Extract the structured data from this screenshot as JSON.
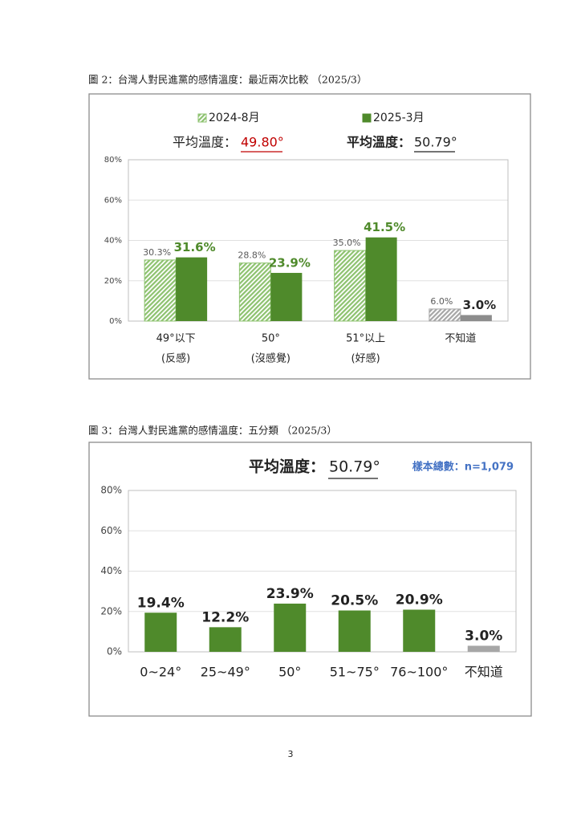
{
  "chart_data": [
    {
      "type": "bar",
      "title": "圖 2：台灣人對民進黨的感情溫度：最近兩次比較 （2025/3）",
      "annotations": [
        {
          "label": "平均溫度：",
          "value": "49.80°"
        },
        {
          "label": "平均溫度：",
          "value": "50.79°"
        }
      ],
      "categories": [
        "49°以下",
        "50°",
        "51°以上",
        "不知道"
      ],
      "category_notes": [
        "(反感)",
        "(沒感覺)",
        "(好感)",
        null
      ],
      "series": [
        {
          "name": "2024-8月",
          "color": "#8dc26f",
          "pattern": "hatch",
          "colors": [
            "#8dc26f",
            "#8dc26f",
            "#8dc26f",
            "#a6a6a6"
          ],
          "label_colors": [
            "#595959",
            "#595959",
            "#595959",
            "#595959"
          ],
          "values": [
            30.3,
            28.8,
            35.0,
            6.0
          ],
          "value_labels": [
            "30.3%",
            "28.8%",
            "35.0%",
            "6.0%"
          ]
        },
        {
          "name": "2025-3月",
          "color": "#4f8a2b",
          "colors": [
            "#4f8a2b",
            "#4f8a2b",
            "#4f8a2b",
            "#8c8c8c"
          ],
          "label_colors": [
            "#4f8a2b",
            "#4f8a2b",
            "#4f8a2b",
            "#262626"
          ],
          "values": [
            31.6,
            23.9,
            41.5,
            3.0
          ],
          "value_labels": [
            "31.6%",
            "23.9%",
            "41.5%",
            "3.0%"
          ]
        }
      ],
      "ylim": [
        0,
        80
      ],
      "yticks": [
        {
          "value": 0,
          "label": "0%"
        },
        {
          "value": 20,
          "label": "20%"
        },
        {
          "value": 40,
          "label": "40%"
        },
        {
          "value": 60,
          "label": "60%"
        },
        {
          "value": 80,
          "label": "80%"
        }
      ],
      "grid": true
    },
    {
      "type": "bar",
      "title": "圖 3：台灣人對民進黨的感情溫度：五分類 （2025/3）",
      "annotations": [
        {
          "label": "平均溫度：",
          "value": "50.79°"
        }
      ],
      "note": "樣本總數：n=1,079",
      "categories": [
        "0~24°",
        "25~49°",
        "50°",
        "51~75°",
        "76~100°",
        "不知道"
      ],
      "values": [
        19.4,
        12.2,
        23.9,
        20.5,
        20.9,
        3.0
      ],
      "value_labels": [
        "19.4%",
        "12.2%",
        "23.9%",
        "20.5%",
        "20.9%",
        "3.0%"
      ],
      "colors": [
        "#4f8a2b",
        "#4f8a2b",
        "#4f8a2b",
        "#4f8a2b",
        "#4f8a2b",
        "#a6a6a6"
      ],
      "ylim": [
        0,
        80
      ],
      "yticks": [
        {
          "value": 0,
          "label": "0%"
        },
        {
          "value": 20,
          "label": "20%"
        },
        {
          "value": 40,
          "label": "40%"
        },
        {
          "value": 60,
          "label": "60%"
        },
        {
          "value": 80,
          "label": "80%"
        }
      ],
      "grid": true
    }
  ],
  "page_number": "3"
}
